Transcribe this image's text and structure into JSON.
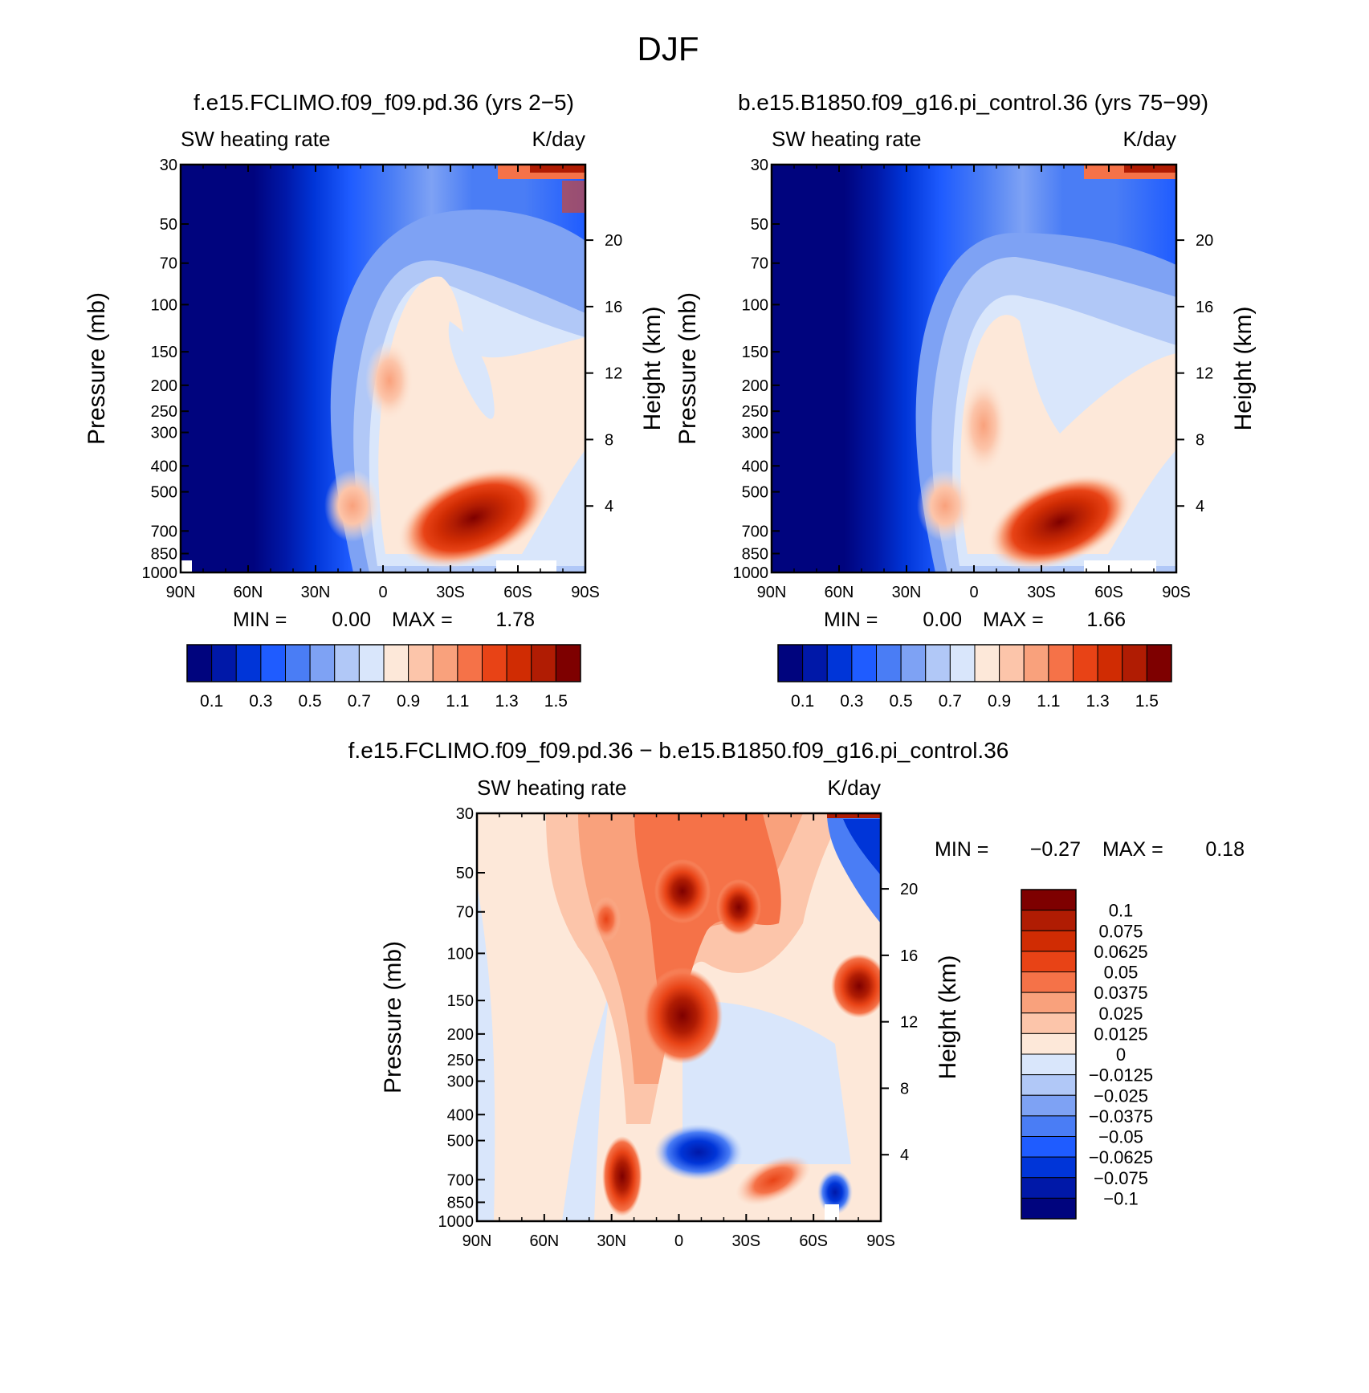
{
  "figure_title": "DJF",
  "chart_data": [
    {
      "type": "contour",
      "title": "f.e15.FCLIMO.f09_f09.pd.36 (yrs 2-5)",
      "left_label": "SW heating rate",
      "right_label": "K/day",
      "xlabel": "",
      "ylabel": "Pressure (mb)",
      "ylabel2": "Height (km)",
      "x_ticks": [
        "90N",
        "60N",
        "30N",
        "0",
        "30S",
        "60S",
        "90S"
      ],
      "y_ticks": [
        30,
        50,
        70,
        100,
        150,
        200,
        250,
        300,
        400,
        500,
        700,
        850,
        1000
      ],
      "height_ticks": [
        20,
        16,
        12,
        8,
        4
      ],
      "ylim": [
        30,
        1000
      ],
      "xlim": [
        90,
        -90
      ],
      "min_label": "MIN =",
      "min_value": "0.00",
      "max_label": "MAX =",
      "max_value": "1.78",
      "colorbar": {
        "levels": [
          "0.1",
          "0.3",
          "0.5",
          "0.7",
          "0.9",
          "1.1",
          "1.3",
          "1.5"
        ],
        "colors": [
          "#00047e",
          "#0018a8",
          "#0035d8",
          "#1f5cff",
          "#4a7df5",
          "#7ea2f4",
          "#b1c8f7",
          "#d9e6fb",
          "#fde8d9",
          "#fcc5aa",
          "#f9a17c",
          "#f57248",
          "#e84316",
          "#d02c03",
          "#b01c03",
          "#7e0000"
        ]
      }
    },
    {
      "type": "contour",
      "title": "b.e15.B1850.f09_g16.pi_control.36 (yrs 75-99)",
      "left_label": "SW heating rate",
      "right_label": "K/day",
      "xlabel": "",
      "ylabel": "Pressure (mb)",
      "ylabel2": "Height (km)",
      "x_ticks": [
        "90N",
        "60N",
        "30N",
        "0",
        "30S",
        "60S",
        "90S"
      ],
      "y_ticks": [
        30,
        50,
        70,
        100,
        150,
        200,
        250,
        300,
        400,
        500,
        700,
        850,
        1000
      ],
      "height_ticks": [
        20,
        16,
        12,
        8,
        4
      ],
      "ylim": [
        30,
        1000
      ],
      "xlim": [
        90,
        -90
      ],
      "min_label": "MIN =",
      "min_value": "0.00",
      "max_label": "MAX =",
      "max_value": "1.66",
      "colorbar": {
        "levels": [
          "0.1",
          "0.3",
          "0.5",
          "0.7",
          "0.9",
          "1.1",
          "1.3",
          "1.5"
        ],
        "colors": [
          "#00047e",
          "#0018a8",
          "#0035d8",
          "#1f5cff",
          "#4a7df5",
          "#7ea2f4",
          "#b1c8f7",
          "#d9e6fb",
          "#fde8d9",
          "#fcc5aa",
          "#f9a17c",
          "#f57248",
          "#e84316",
          "#d02c03",
          "#b01c03",
          "#7e0000"
        ]
      }
    },
    {
      "type": "contour",
      "title": "f.e15.FCLIMO.f09_f09.pd.36 - b.e15.B1850.f09_g16.pi_control.36",
      "left_label": "SW heating rate",
      "right_label": "K/day",
      "xlabel": "",
      "ylabel": "Pressure (mb)",
      "ylabel2": "Height (km)",
      "x_ticks": [
        "90N",
        "60N",
        "30N",
        "0",
        "30S",
        "60S",
        "90S"
      ],
      "y_ticks": [
        30,
        50,
        70,
        100,
        150,
        200,
        250,
        300,
        400,
        500,
        700,
        850,
        1000
      ],
      "height_ticks": [
        20,
        16,
        12,
        8,
        4
      ],
      "ylim": [
        30,
        1000
      ],
      "xlim": [
        90,
        -90
      ],
      "min_label": "MIN =",
      "min_value": "-0.27",
      "max_label": "MAX =",
      "max_value": "0.18",
      "colorbar": {
        "levels": [
          "0.1",
          "0.075",
          "0.0625",
          "0.05",
          "0.0375",
          "0.025",
          "0.0125",
          "0",
          "-0.0125",
          "-0.025",
          "-0.0375",
          "-0.05",
          "-0.0625",
          "-0.075",
          "-0.1"
        ],
        "colors": [
          "#7e0000",
          "#b01c03",
          "#d02c03",
          "#e84316",
          "#f57248",
          "#f9a17c",
          "#fcc5aa",
          "#fde8d9",
          "#d9e6fb",
          "#b1c8f7",
          "#7ea2f4",
          "#4a7df5",
          "#1f5cff",
          "#0035d8",
          "#0018a8",
          "#00047e"
        ]
      }
    }
  ]
}
